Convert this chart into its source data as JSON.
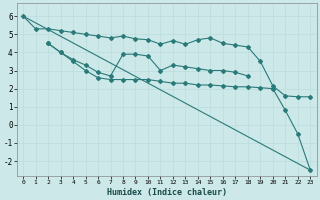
{
  "xlabel": "Humidex (Indice chaleur)",
  "background_color": "#cce8e8",
  "grid_color": "#aacccc",
  "line_color": "#2a7a7a",
  "xlim": [
    -0.5,
    23.5
  ],
  "ylim": [
    -2.8,
    6.7
  ],
  "xticks": [
    0,
    1,
    2,
    3,
    4,
    5,
    6,
    7,
    8,
    9,
    10,
    11,
    12,
    13,
    14,
    15,
    16,
    17,
    18,
    19,
    20,
    21,
    22,
    23
  ],
  "yticks": [
    -2,
    -1,
    0,
    1,
    2,
    3,
    4,
    5,
    6
  ],
  "series": [
    {
      "x": [
        0,
        1,
        2,
        3,
        4,
        5,
        6,
        7,
        8,
        9,
        10,
        11,
        12,
        13,
        14,
        15,
        16,
        17,
        18,
        19,
        20,
        21,
        22,
        23
      ],
      "y": [
        6.0,
        5.3,
        5.3,
        5.2,
        5.1,
        5.0,
        4.9,
        4.8,
        4.9,
        4.75,
        4.7,
        4.45,
        4.65,
        4.45,
        4.7,
        4.8,
        4.5,
        4.4,
        4.3,
        3.5,
        2.15,
        1.6,
        1.55,
        1.55
      ],
      "marker": "D",
      "markersize": 2.0,
      "linewidth": 0.8
    },
    {
      "x": [
        2,
        3,
        4,
        5,
        6,
        7,
        8,
        9,
        10,
        11,
        12,
        13,
        14,
        15,
        16,
        17,
        18
      ],
      "y": [
        4.5,
        4.0,
        3.6,
        3.3,
        2.9,
        2.7,
        3.9,
        3.9,
        3.8,
        3.0,
        3.3,
        3.2,
        3.1,
        3.0,
        3.0,
        2.9,
        2.7
      ],
      "marker": "D",
      "markersize": 2.0,
      "linewidth": 0.8
    },
    {
      "x": [
        0,
        23
      ],
      "y": [
        6.0,
        -2.5
      ],
      "marker": null,
      "markersize": 0,
      "linewidth": 0.8
    },
    {
      "x": [
        2,
        3,
        4,
        5,
        6,
        7,
        8,
        9,
        10,
        11,
        12,
        13,
        14,
        15,
        16,
        17,
        18,
        19,
        20,
        21,
        22,
        23
      ],
      "y": [
        4.5,
        4.0,
        3.5,
        3.0,
        2.6,
        2.5,
        2.5,
        2.5,
        2.5,
        2.4,
        2.3,
        2.3,
        2.2,
        2.2,
        2.15,
        2.1,
        2.1,
        2.05,
        2.0,
        0.8,
        -0.5,
        -2.5
      ],
      "marker": "D",
      "markersize": 2.0,
      "linewidth": 0.8
    }
  ]
}
